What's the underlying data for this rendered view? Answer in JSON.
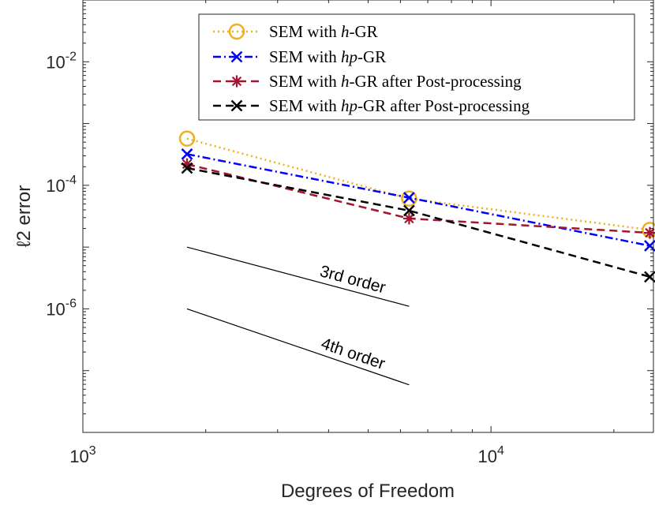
{
  "chart_data": {
    "type": "line",
    "title": "",
    "xlabel": "Degrees of Freedom",
    "ylabel": "ℓ2 error",
    "xscale": "log",
    "yscale": "log",
    "xlim": [
      1000,
      25000
    ],
    "ylim": [
      1e-08,
      0.1
    ],
    "grid": false,
    "legend_position": "top-right",
    "x_ticks": [
      {
        "value": 1000,
        "base": "10",
        "exp": "3"
      },
      {
        "value": 10000,
        "base": "10",
        "exp": "4"
      }
    ],
    "y_ticks": [
      {
        "value": 0.01,
        "base": "10",
        "exp": "-2"
      },
      {
        "value": 0.0001,
        "base": "10",
        "exp": "-4"
      },
      {
        "value": 1e-06,
        "base": "10",
        "exp": "-6"
      }
    ],
    "series": [
      {
        "name": "SEM with h-GR",
        "legend": {
          "pre": "SEM with ",
          "it": "h",
          "post": "-GR"
        },
        "color": "#EDB120",
        "dash": "2,4",
        "marker": "circle",
        "x": [
          1800,
          6300,
          24500
        ],
        "y": [
          0.00057,
          6.1e-05,
          1.9e-05
        ]
      },
      {
        "name": "SEM with hp-GR",
        "legend": {
          "pre": "SEM with ",
          "it": "hp",
          "post": "-GR"
        },
        "color": "#0000FF",
        "dash": "10,4,2,4",
        "marker": "x",
        "x": [
          1800,
          6300,
          24500
        ],
        "y": [
          0.00032,
          6.3e-05,
          1.05e-05
        ]
      },
      {
        "name": "SEM with h-GR after Post-processing",
        "legend": {
          "pre": "SEM with ",
          "it": "h",
          "post": "-GR after Post-processing"
        },
        "color": "#A2142F",
        "dash": "10,6",
        "marker": "asterisk",
        "x": [
          1800,
          6300,
          24500
        ],
        "y": [
          0.00022,
          2.9e-05,
          1.7e-05
        ]
      },
      {
        "name": "SEM with hp-GR after Post-processing",
        "legend": {
          "pre": "SEM with ",
          "it": "hp",
          "post": "-GR after Post-processing"
        },
        "color": "#000000",
        "dash": "10,6",
        "marker": "x",
        "x": [
          1800,
          6300,
          24500
        ],
        "y": [
          0.00019,
          3.9e-05,
          3.3e-06
        ]
      }
    ],
    "reference_lines": [
      {
        "label": "3rd order",
        "x": [
          1800,
          6300
        ],
        "y": [
          1e-05,
          1.1e-06
        ]
      },
      {
        "label": "4th order",
        "x": [
          1800,
          6300
        ],
        "y": [
          1e-06,
          5.9e-08
        ]
      }
    ]
  }
}
